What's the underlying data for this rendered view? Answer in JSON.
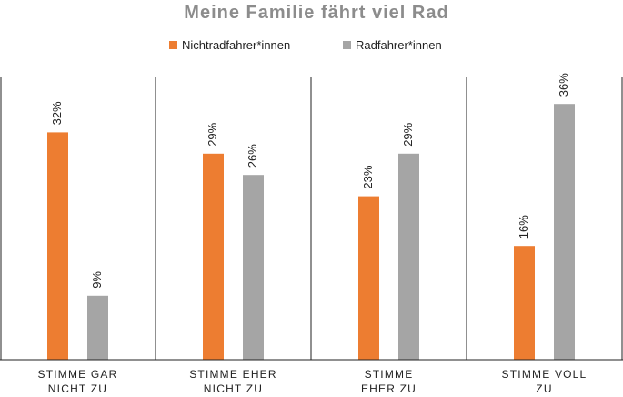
{
  "chart_data": {
    "type": "bar",
    "title": "Meine Familie fährt viel Rad",
    "legend_position": "top-center",
    "categories": [
      [
        "STIMME GAR",
        "NICHT ZU"
      ],
      [
        "STIMME EHER",
        "NICHT ZU"
      ],
      [
        "STIMME",
        "EHER ZU"
      ],
      [
        "STIMME VOLL",
        "ZU"
      ]
    ],
    "series": [
      {
        "name": "Nichtradfahrer*innen",
        "color": "#ed7d31",
        "values": [
          32,
          29,
          23,
          16
        ],
        "labels": [
          "32%",
          "29%",
          "23%",
          "16%"
        ]
      },
      {
        "name": "Radfahrer*innen",
        "color": "#a5a5a5",
        "values": [
          9,
          26,
          29,
          36
        ],
        "labels": [
          "9%",
          "26%",
          "29%",
          "36%"
        ]
      }
    ],
    "ylim": [
      0,
      42
    ],
    "gridlines": "vertical separators between categories"
  }
}
